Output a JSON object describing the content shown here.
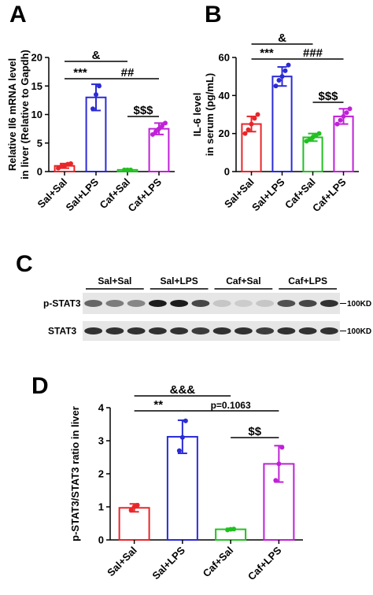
{
  "chart_data": [
    {
      "type": "bar",
      "panel": "A",
      "ylabel": [
        "Relative Il6 mRNA level",
        "in liver (Relative to Gapdh)"
      ],
      "categories": [
        "Sal+Sal",
        "Sal+LPS",
        "Caf+Sal",
        "Caf+LPS"
      ],
      "values": [
        1.0,
        13.0,
        0.3,
        7.5
      ],
      "errors": [
        0.4,
        2.3,
        0.1,
        1.0
      ],
      "points": [
        [
          0.6,
          0.9,
          1.0,
          1.3,
          1.4
        ],
        [
          11,
          13.5,
          15
        ],
        [
          0.3,
          0.3,
          0.3
        ],
        [
          6.5,
          7,
          7.5,
          8,
          8.5
        ]
      ],
      "colors": [
        "#e8262a",
        "#2b2bd6",
        "#22c022",
        "#c020d8"
      ],
      "ylim": [
        0,
        20
      ],
      "yticks": [
        0,
        5,
        10,
        15,
        20
      ],
      "annotations": [
        {
          "text": "&",
          "span": [
            0,
            2
          ]
        },
        {
          "text": "***",
          "span": [
            0,
            1
          ]
        },
        {
          "text": "##",
          "span": [
            1,
            3
          ]
        },
        {
          "text": "$$$",
          "span": [
            2,
            3
          ]
        }
      ]
    },
    {
      "type": "bar",
      "panel": "B",
      "ylabel": [
        "IL-6 level",
        "in serum (pg/mL)"
      ],
      "categories": [
        "Sal+Sal",
        "Sal+LPS",
        "Caf+Sal",
        "Caf+LPS"
      ],
      "values": [
        25,
        50,
        18,
        29
      ],
      "errors": [
        4,
        5,
        2,
        4
      ],
      "points": [
        [
          20,
          22,
          25,
          28,
          30
        ],
        [
          45,
          48,
          50,
          53,
          56
        ],
        [
          16,
          17,
          18,
          19,
          20
        ],
        [
          25,
          27,
          29,
          31,
          33
        ]
      ],
      "colors": [
        "#e8262a",
        "#2b2bd6",
        "#22c022",
        "#c020d8"
      ],
      "ylim": [
        0,
        60
      ],
      "yticks": [
        0,
        20,
        40,
        60
      ],
      "annotations": [
        {
          "text": "&",
          "span": [
            0,
            2
          ]
        },
        {
          "text": "***",
          "span": [
            0,
            1
          ]
        },
        {
          "text": "###",
          "span": [
            1,
            3
          ]
        },
        {
          "text": "$$$",
          "span": [
            2,
            3
          ]
        }
      ]
    },
    {
      "type": "bar",
      "panel": "D",
      "ylabel": [
        "p-STAT3/STAT3 ratio in liver"
      ],
      "categories": [
        "Sal+Sal",
        "Sal+LPS",
        "Caf+Sal",
        "Caf+LPS"
      ],
      "values": [
        0.97,
        3.12,
        0.32,
        2.3
      ],
      "errors": [
        0.12,
        0.5,
        0.03,
        0.55
      ],
      "points": [
        [
          0.9,
          1.0,
          1.05
        ],
        [
          2.7,
          3.1,
          3.6
        ],
        [
          0.3,
          0.32,
          0.33
        ],
        [
          1.8,
          2.3,
          2.8
        ]
      ],
      "colors": [
        "#e8262a",
        "#2b2bd6",
        "#22c022",
        "#c020d8"
      ],
      "ylim": [
        0,
        4
      ],
      "yticks": [
        0,
        1,
        2,
        3,
        4
      ],
      "annotations": [
        {
          "text": "&&&",
          "span": [
            0,
            2
          ]
        },
        {
          "text": "**",
          "span": [
            0,
            1
          ]
        },
        {
          "text": "p=0.1063",
          "span": [
            1,
            3
          ]
        },
        {
          "text": "$$",
          "span": [
            2,
            3
          ]
        }
      ]
    }
  ],
  "blot": {
    "panel": "C",
    "groups": [
      "Sal+Sal",
      "Sal+LPS",
      "Caf+Sal",
      "Caf+LPS"
    ],
    "rows": [
      "p-STAT3",
      "STAT3"
    ],
    "marker": "100KD"
  }
}
